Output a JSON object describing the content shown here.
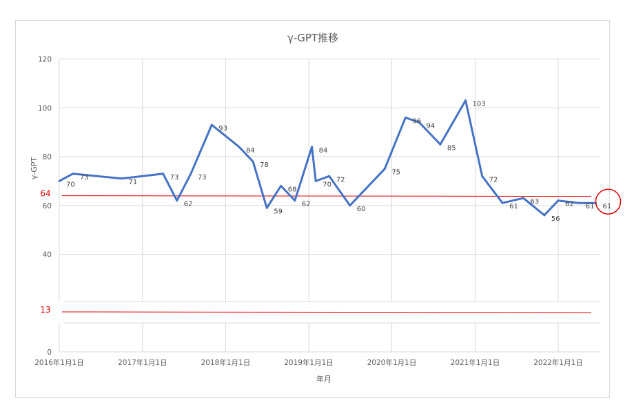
{
  "chart_data": {
    "type": "line",
    "title": "γ-GPT推移",
    "xlabel": "年月",
    "ylabel": "γ-GPT",
    "ylim": [
      0,
      120
    ],
    "y_ticks": [
      "0",
      "40",
      "60",
      "80",
      "100",
      "120"
    ],
    "y_tick_values": [
      0,
      40,
      60,
      80,
      100,
      120
    ],
    "y_axis_break_between": [
      0,
      40
    ],
    "x_range": [
      "2016-01-01",
      "2022-07-01"
    ],
    "x_ticks": [
      "2016年1月1日",
      "2017年1月1日",
      "2018年1月1日",
      "2019年1月1日",
      "2020年1月1日",
      "2021年1月1日",
      "2022年1月1日"
    ],
    "x_tick_dates": [
      "2016-01-01",
      "2017-01-01",
      "2018-01-01",
      "2019-01-01",
      "2020-01-01",
      "2021-01-01",
      "2022-01-01"
    ],
    "grid": true,
    "series": [
      {
        "color": "#4472c4",
        "points": [
          {
            "x": "2016-01-01",
            "y": 70,
            "label": "70"
          },
          {
            "x": "2016-03-01",
            "y": 73,
            "label": "73"
          },
          {
            "x": "2016-10-01",
            "y": 71,
            "label": "71"
          },
          {
            "x": "2017-04-01",
            "y": 73,
            "label": "73"
          },
          {
            "x": "2017-06-01",
            "y": 62,
            "label": "62"
          },
          {
            "x": "2017-08-01",
            "y": 73,
            "label": "73"
          },
          {
            "x": "2017-11-01",
            "y": 93,
            "label": "93"
          },
          {
            "x": "2018-03-01",
            "y": 84,
            "label": "84"
          },
          {
            "x": "2018-05-01",
            "y": 78,
            "label": "78"
          },
          {
            "x": "2018-07-01",
            "y": 59,
            "label": "59"
          },
          {
            "x": "2018-09-01",
            "y": 68,
            "label": "68"
          },
          {
            "x": "2018-11-01",
            "y": 62,
            "label": "62"
          },
          {
            "x": "2019-01-15",
            "y": 84,
            "label": "84"
          },
          {
            "x": "2019-02-01",
            "y": 70,
            "label": "70"
          },
          {
            "x": "2019-04-01",
            "y": 72,
            "label": "72"
          },
          {
            "x": "2019-07-01",
            "y": 60,
            "label": "60"
          },
          {
            "x": "2019-12-01",
            "y": 75,
            "label": "75"
          },
          {
            "x": "2020-03-01",
            "y": 96,
            "label": "96"
          },
          {
            "x": "2020-05-01",
            "y": 94,
            "label": "94"
          },
          {
            "x": "2020-08-01",
            "y": 85,
            "label": "85"
          },
          {
            "x": "2020-11-20",
            "y": 103,
            "label": "103"
          },
          {
            "x": "2021-02-01",
            "y": 72,
            "label": "72"
          },
          {
            "x": "2021-05-01",
            "y": 61,
            "label": "61"
          },
          {
            "x": "2021-08-01",
            "y": 63,
            "label": "63"
          },
          {
            "x": "2021-11-01",
            "y": 56,
            "label": "56"
          },
          {
            "x": "2022-01-01",
            "y": 62,
            "label": "62"
          },
          {
            "x": "2022-04-01",
            "y": 61,
            "label": "61"
          },
          {
            "x": "2022-06-15",
            "y": 61,
            "label": "61"
          }
        ]
      }
    ],
    "reference_lines": [
      {
        "value": 64,
        "label": "64",
        "color": "#e00000"
      },
      {
        "value": 13,
        "label": "13",
        "color": "#e00000"
      }
    ],
    "annotations": [
      {
        "shape": "circle",
        "target_x": "2022-06-15",
        "target_y": 61,
        "color": "#e00000"
      }
    ]
  }
}
